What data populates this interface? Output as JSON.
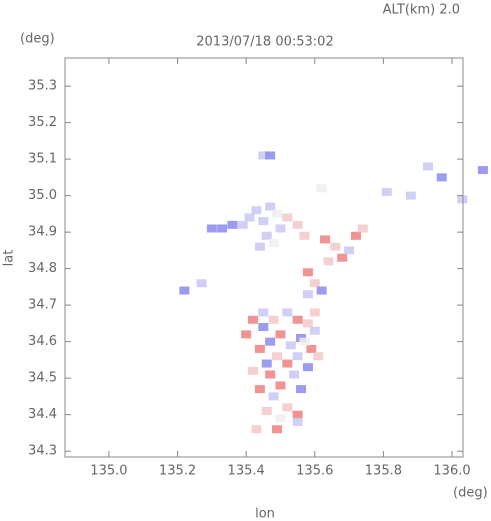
{
  "chart_data": {
    "type": "scatter",
    "title": "2013/07/18 00:53:02",
    "annotation": "ALT(km)  2.0",
    "y_unit": "(deg)",
    "x_unit": "(deg)",
    "xlabel": "lon",
    "ylabel": "lat",
    "xlim": [
      134.872,
      136.032
    ],
    "ylim": [
      34.284,
      35.377
    ],
    "xticks": [
      {
        "value": 135.0,
        "label": "135.0"
      },
      135.2,
      135.4,
      135.6,
      135.8,
      {
        "value": 136.0,
        "label": "136.0"
      }
    ],
    "yticks": [
      34.3,
      34.4,
      34.5,
      34.6,
      34.7,
      34.8,
      34.9,
      {
        "value": 35.0,
        "label": "35.0"
      },
      35.1,
      35.2,
      35.3
    ],
    "grid": false,
    "x": [
      135.45,
      135.47,
      135.3,
      135.33,
      135.36,
      135.39,
      135.41,
      135.43,
      135.45,
      135.47,
      135.49,
      135.52,
      135.55,
      135.57,
      135.5,
      135.46,
      135.44,
      135.48,
      135.63,
      135.66,
      135.68,
      135.64,
      135.72,
      135.74,
      135.7,
      135.58,
      135.6,
      135.62,
      135.58,
      135.88,
      135.97,
      135.93,
      136.09,
      136.03,
      135.81,
      135.62,
      135.22,
      135.27,
      135.42,
      135.45,
      135.4,
      135.48,
      135.52,
      135.55,
      135.58,
      135.6,
      135.5,
      135.47,
      135.44,
      135.53,
      135.56,
      135.59,
      135.49,
      135.52,
      135.55,
      135.46,
      135.42,
      135.58,
      135.61,
      135.47,
      135.54,
      135.5,
      135.44,
      135.56,
      135.48,
      135.52,
      135.55,
      135.46,
      135.5,
      135.49,
      135.55,
      135.43,
      135.57,
      135.6,
      135.45
    ],
    "y": [
      35.11,
      35.11,
      34.91,
      34.91,
      34.92,
      34.92,
      34.94,
      34.96,
      34.93,
      34.97,
      34.95,
      34.94,
      34.92,
      34.89,
      34.91,
      34.89,
      34.86,
      34.87,
      34.88,
      34.86,
      34.83,
      34.82,
      34.89,
      34.91,
      34.85,
      34.79,
      34.76,
      34.74,
      34.73,
      35.0,
      35.05,
      35.08,
      35.07,
      34.99,
      35.01,
      35.02,
      34.74,
      34.76,
      34.66,
      34.64,
      34.62,
      34.66,
      34.68,
      34.66,
      34.65,
      34.63,
      34.62,
      34.6,
      34.58,
      34.59,
      34.61,
      34.58,
      34.56,
      34.54,
      34.56,
      34.54,
      34.52,
      34.53,
      34.56,
      34.51,
      34.51,
      34.48,
      34.47,
      34.47,
      34.45,
      34.42,
      34.4,
      34.41,
      34.39,
      34.36,
      34.38,
      34.36,
      34.6,
      34.68,
      34.68
    ],
    "colors": [
      "#c8c8f5",
      "#8a8af0",
      "#8a8af0",
      "#8a8af0",
      "#8a8af0",
      "#c8c8f5",
      "#c8c8f5",
      "#c8c8f5",
      "#c8c8f5",
      "#c8c8f5",
      "#eeeeee",
      "#f5c8c8",
      "#f5c8c8",
      "#f5c8c8",
      "#c8c8f5",
      "#c8c8f5",
      "#c8c8f5",
      "#eeeeee",
      "#f08080",
      "#f5c8c8",
      "#f08080",
      "#f5c8c8",
      "#f08080",
      "#f5c8c8",
      "#c8c8f5",
      "#f08080",
      "#f5c8c8",
      "#8a8af0",
      "#c8c8f5",
      "#c8c8f5",
      "#8a8af0",
      "#c8c8f5",
      "#8a8af0",
      "#c8c8f5",
      "#c8c8f5",
      "#eeeeee",
      "#8a8af0",
      "#c8c8f5",
      "#f08080",
      "#8a8af0",
      "#f08080",
      "#f5c8c8",
      "#c8c8f5",
      "#f08080",
      "#f5c8c8",
      "#c8c8f5",
      "#f08080",
      "#8a8af0",
      "#f08080",
      "#c8c8f5",
      "#8a8af0",
      "#f08080",
      "#f5c8c8",
      "#f08080",
      "#c8c8f5",
      "#8a8af0",
      "#f5c8c8",
      "#8a8af0",
      "#f5c8c8",
      "#f08080",
      "#c8c8f5",
      "#f08080",
      "#f08080",
      "#8a8af0",
      "#c8c8f5",
      "#f5c8c8",
      "#f08080",
      "#f5c8c8",
      "#eeeeee",
      "#f08080",
      "#c8c8f5",
      "#f5c8c8",
      "#eeeeee",
      "#f5c8c8",
      "#c8c8f5"
    ]
  }
}
